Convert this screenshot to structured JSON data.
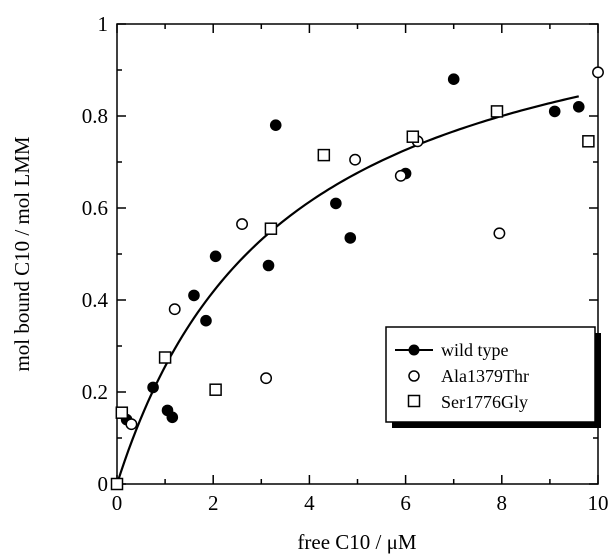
{
  "chart_data": {
    "type": "scatter",
    "title": "",
    "xlabel": "free C10  /  μM",
    "ylabel": "mol bound C10 / mol LMM",
    "xlim": [
      0,
      10
    ],
    "ylim": [
      0,
      1
    ],
    "xticks": [
      "0",
      "2",
      "4",
      "6",
      "8",
      "10"
    ],
    "yticks": [
      "0",
      "0.2",
      "0.4",
      "0.6",
      "0.8",
      "1"
    ],
    "grid": false,
    "legend_position": "lower-right",
    "series": [
      {
        "name": "wild type",
        "marker": "filled-circle",
        "color": "#000000",
        "points": [
          [
            0.0,
            0.0
          ],
          [
            0.2,
            0.14
          ],
          [
            0.75,
            0.21
          ],
          [
            1.05,
            0.16
          ],
          [
            1.15,
            0.145
          ],
          [
            1.6,
            0.41
          ],
          [
            1.85,
            0.355
          ],
          [
            2.05,
            0.495
          ],
          [
            3.15,
            0.475
          ],
          [
            3.3,
            0.78
          ],
          [
            4.55,
            0.61
          ],
          [
            4.85,
            0.535
          ],
          [
            6.0,
            0.675
          ],
          [
            7.0,
            0.88
          ],
          [
            9.1,
            0.81
          ],
          [
            9.6,
            0.82
          ]
        ]
      },
      {
        "name": "Ala1379Thr",
        "marker": "open-circle",
        "color": "#000000",
        "points": [
          [
            0.0,
            0.0
          ],
          [
            0.3,
            0.13
          ],
          [
            1.2,
            0.38
          ],
          [
            2.6,
            0.565
          ],
          [
            3.1,
            0.23
          ],
          [
            4.95,
            0.705
          ],
          [
            5.9,
            0.67
          ],
          [
            6.25,
            0.745
          ],
          [
            7.95,
            0.545
          ],
          [
            10.0,
            0.895
          ]
        ]
      },
      {
        "name": "Ser1776Gly",
        "marker": "open-square",
        "color": "#000000",
        "points": [
          [
            0.0,
            0.0
          ],
          [
            0.1,
            0.155
          ],
          [
            1.0,
            0.275
          ],
          [
            2.05,
            0.205
          ],
          [
            3.2,
            0.555
          ],
          [
            4.3,
            0.715
          ],
          [
            6.15,
            0.755
          ],
          [
            7.9,
            0.81
          ],
          [
            9.8,
            0.745
          ]
        ]
      }
    ],
    "fit_curve": {
      "series": "wild type",
      "model": "hyperbolic",
      "bmax": 1.15,
      "kd": 3.5,
      "x_range": [
        0,
        9.6
      ]
    }
  }
}
